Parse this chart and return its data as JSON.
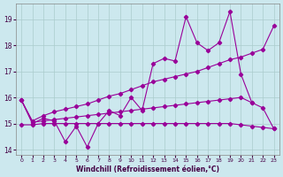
{
  "xlabel": "Windchill (Refroidissement éolien,°C)",
  "bg_color": "#cce8ee",
  "line_color": "#990099",
  "grid_color": "#aacccc",
  "ylim": [
    13.8,
    19.6
  ],
  "xlim": [
    -0.5,
    23.5
  ],
  "yticks": [
    14,
    15,
    16,
    17,
    18,
    19
  ],
  "xticks": [
    0,
    1,
    2,
    3,
    4,
    5,
    6,
    7,
    8,
    9,
    10,
    11,
    12,
    13,
    14,
    15,
    16,
    17,
    18,
    19,
    20,
    21,
    22,
    23
  ],
  "line1_x": [
    0,
    1,
    2,
    3,
    4,
    5,
    6,
    7,
    8,
    9,
    10,
    11,
    12,
    13,
    14,
    15,
    16,
    17,
    18,
    19,
    20,
    21
  ],
  "line1_y": [
    15.9,
    15.0,
    15.2,
    15.1,
    14.3,
    14.9,
    14.1,
    15.0,
    15.5,
    15.3,
    16.0,
    15.5,
    17.3,
    17.5,
    17.4,
    19.1,
    18.1,
    17.8,
    18.1,
    19.3,
    16.9,
    15.8
  ],
  "line2_x": [
    0,
    1,
    2,
    3,
    4,
    5,
    6,
    7,
    8,
    9,
    10,
    11,
    12,
    13,
    14,
    15,
    16,
    17,
    18,
    19,
    20,
    21,
    22,
    23
  ],
  "line2_y": [
    15.9,
    15.1,
    15.3,
    15.45,
    15.55,
    15.65,
    15.75,
    15.9,
    16.05,
    16.15,
    16.3,
    16.45,
    16.6,
    16.7,
    16.8,
    16.9,
    17.0,
    17.15,
    17.3,
    17.45,
    17.55,
    17.7,
    17.85,
    18.75
  ],
  "line3_x": [
    0,
    1,
    2,
    3,
    4,
    5,
    6,
    7,
    8,
    9,
    10,
    11,
    12,
    13,
    14,
    15,
    16,
    17,
    18,
    19,
    20,
    21,
    22,
    23
  ],
  "line3_y": [
    15.9,
    15.05,
    15.1,
    15.15,
    15.2,
    15.25,
    15.3,
    15.35,
    15.4,
    15.45,
    15.5,
    15.55,
    15.6,
    15.65,
    15.7,
    15.75,
    15.8,
    15.85,
    15.9,
    15.95,
    16.0,
    15.8,
    15.6,
    14.8
  ],
  "line4_x": [
    0,
    1,
    2,
    3,
    4,
    5,
    6,
    7,
    8,
    9,
    10,
    11,
    12,
    13,
    14,
    15,
    16,
    17,
    18,
    19,
    20,
    21,
    22,
    23
  ],
  "line4_y": [
    14.95,
    14.95,
    15.0,
    15.0,
    15.0,
    15.0,
    15.0,
    15.0,
    15.0,
    15.0,
    15.0,
    15.0,
    15.0,
    15.0,
    15.0,
    15.0,
    15.0,
    15.0,
    15.0,
    15.0,
    14.95,
    14.9,
    14.85,
    14.8
  ]
}
